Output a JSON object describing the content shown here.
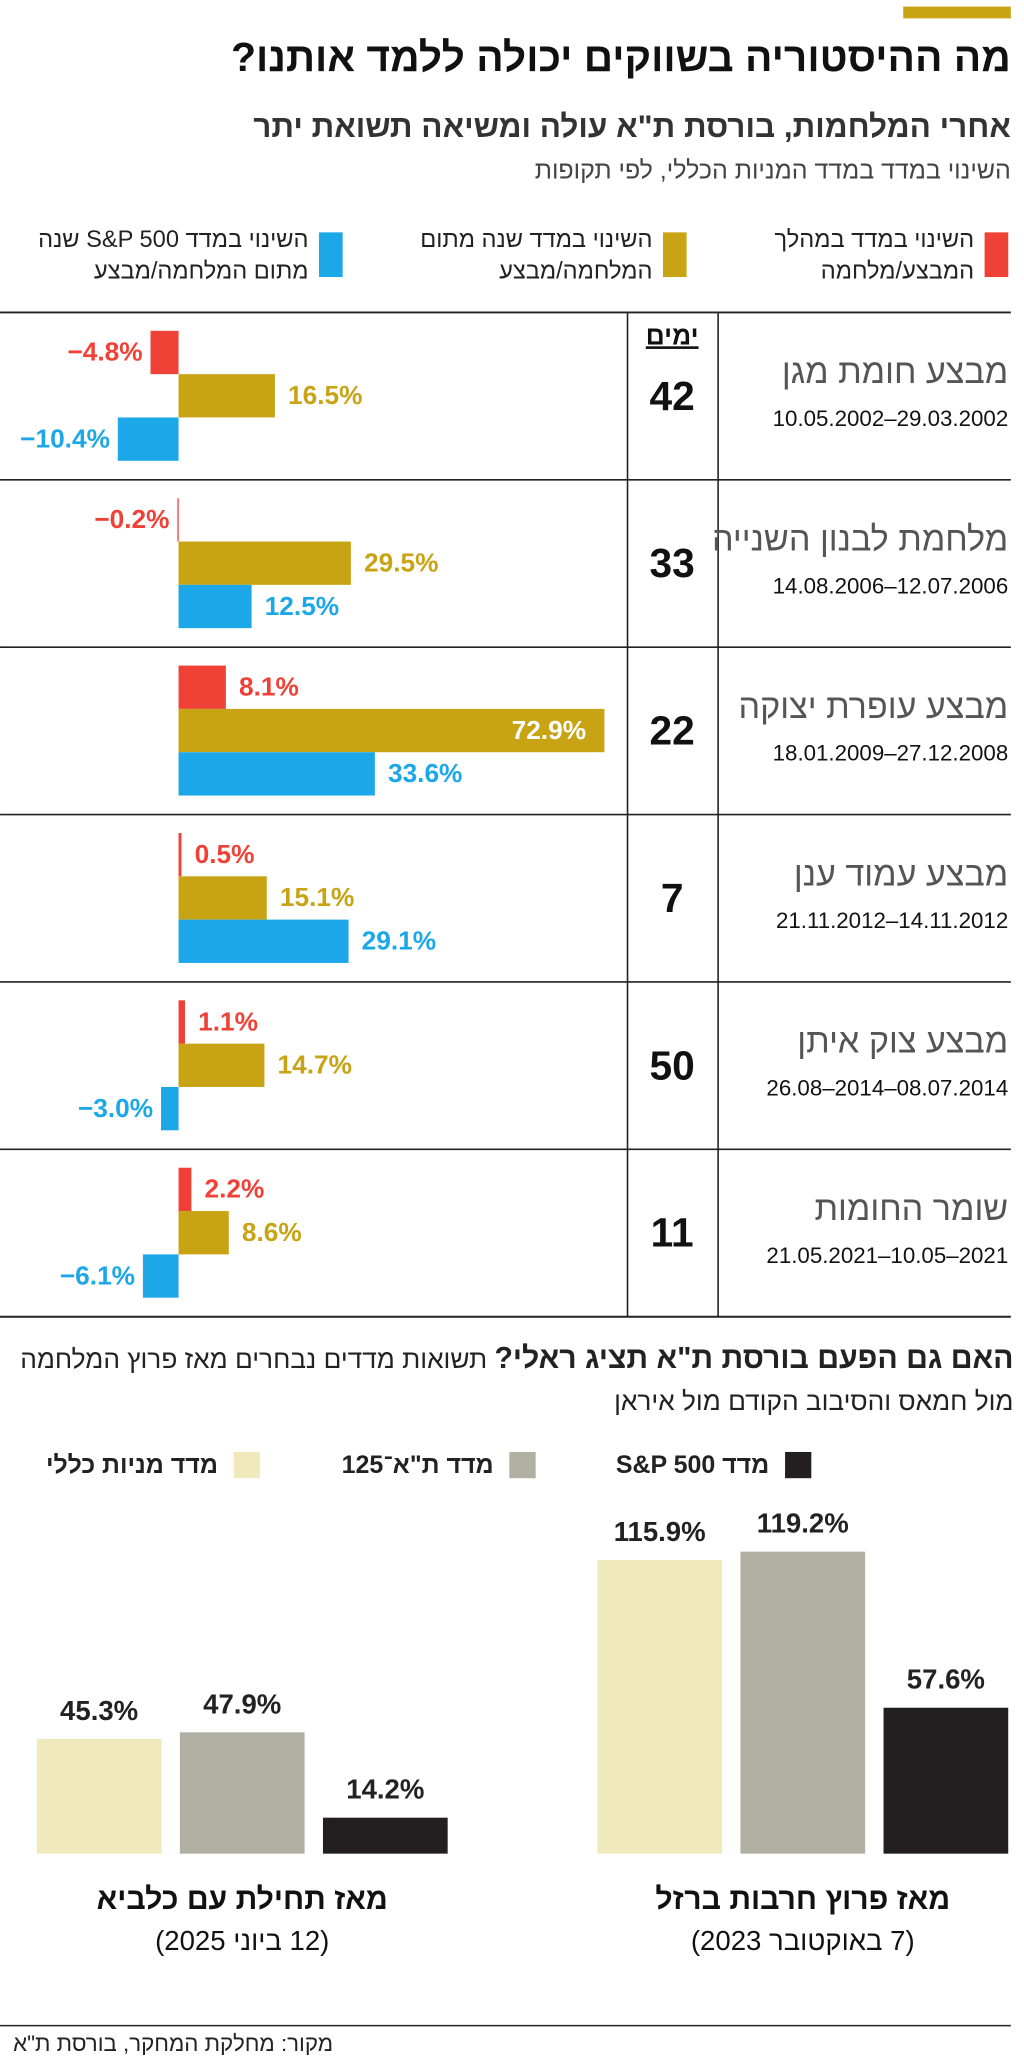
{
  "header": {
    "title": "מה ההיסטוריה בשווקים יכולה ללמד אותנו?",
    "subtitle": "אחרי המלחמות, בורסת ת\"א עולה ומשיאה תשואת יתר"
  },
  "chart_data": [
    {
      "type": "hbar",
      "title": "השינוי במדד במדד המניות הכללי, לפי תקופות",
      "categories": [
        "מבצע חומת מגן",
        "מלחמת לבנון השנייה",
        "מבצע עופרת יצוקה",
        "מבצע עמוד ענן",
        "מבצע צוק איתן",
        "שומר החומות"
      ],
      "category_dates": [
        "10.05.2002–29.03.2002",
        "14.08.2006–12.07.2006",
        "18.01.2009–27.12.2008",
        "21.11.2012–14.11.2012",
        "26.08–2014–08.07.2014",
        "21.05.2021–10.05–2021"
      ],
      "days_label": "ימים",
      "days": [
        42,
        33,
        22,
        7,
        50,
        11
      ],
      "series": [
        {
          "name": "השינוי במדד במהלך המבצע/מלחמה",
          "color": "#ef4136",
          "values": [
            -4.8,
            -0.2,
            8.1,
            0.5,
            1.1,
            2.2
          ],
          "value_labels": [
            "−4.8%",
            "−0.2%",
            "8.1%",
            "0.5%",
            "1.1%",
            "2.2%"
          ]
        },
        {
          "name": "השינוי במדד שנה מתום המלחמה/מבצע",
          "color": "#c8a415",
          "values": [
            16.5,
            29.5,
            72.9,
            15.1,
            14.7,
            8.6
          ],
          "value_labels": [
            "16.5%",
            "29.5%",
            "72.9%",
            "15.1%",
            "14.7%",
            "8.6%"
          ]
        },
        {
          "name": "השינוי במדד S&P 500 שנה מתום המלחמה/מבצע",
          "color": "#1ca7e8",
          "values": [
            -10.4,
            12.5,
            33.6,
            29.1,
            -3.0,
            -6.1
          ],
          "value_labels": [
            "−10.4%",
            "12.5%",
            "33.6%",
            "29.1%",
            "−3.0%",
            "−6.1%"
          ]
        }
      ]
    },
    {
      "type": "bar",
      "title": "האם גם הפעם בורסת ת\"א תציג ראלי?",
      "subtitle": "תשואות מדדים נבחרים מאז פרוץ המלחמה מול חמאס והסיבוב הקודם מול איראן",
      "categories": [
        "מאז פרוץ חרבות ברזל",
        "מאז תחילת עם כלביא"
      ],
      "category_subtitles": [
        "(7 באוקטובר 2023)",
        "(12 ביוני 2025)"
      ],
      "series": [
        {
          "name": "מדד מניות כללי",
          "color": "#efe9bb",
          "values": [
            115.9,
            45.3
          ],
          "value_labels": [
            "115.9%",
            "45.3%"
          ]
        },
        {
          "name": "מדד ת\"א־125",
          "color": "#b1b0a2",
          "values": [
            119.2,
            47.9
          ],
          "value_labels": [
            "119.2%",
            "47.9%"
          ]
        },
        {
          "name": "מדד S&P 500",
          "color": "#231f20",
          "values": [
            57.6,
            14.2
          ],
          "value_labels": [
            "57.6%",
            "14.2%"
          ]
        }
      ]
    }
  ],
  "source": "מקור: מחלקת המחקר, בורסת ת\"א"
}
